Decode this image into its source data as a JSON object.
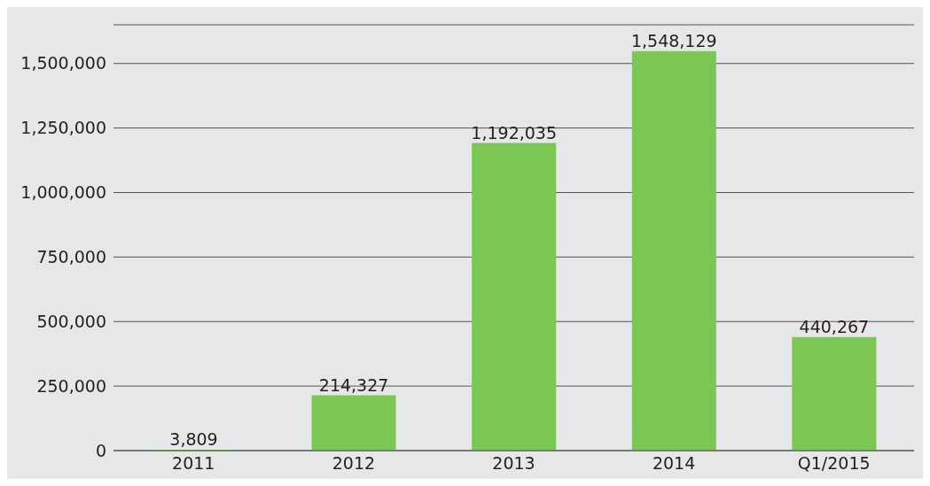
{
  "chart_data": {
    "type": "bar",
    "categories": [
      "2011",
      "2012",
      "2013",
      "2014",
      "Q1/2015"
    ],
    "values": [
      3809,
      214327,
      1192035,
      1548129,
      440267
    ],
    "color": "#7cc753",
    "value_labels": [
      "3,809",
      "214,327",
      "1,192,035",
      "1,548,129",
      "440,267"
    ],
    "ylim": [
      0,
      1650000
    ],
    "yticks": [
      {
        "value": 0,
        "label": "0"
      },
      {
        "value": 250000,
        "label": "250,000"
      },
      {
        "value": 500000,
        "label": "500,000"
      },
      {
        "value": 750000,
        "label": "750,000"
      },
      {
        "value": 1000000,
        "label": "1,000,000"
      },
      {
        "value": 1250000,
        "label": "1,250,000"
      },
      {
        "value": 1500000,
        "label": "1,500,000"
      }
    ],
    "grid": "y"
  }
}
